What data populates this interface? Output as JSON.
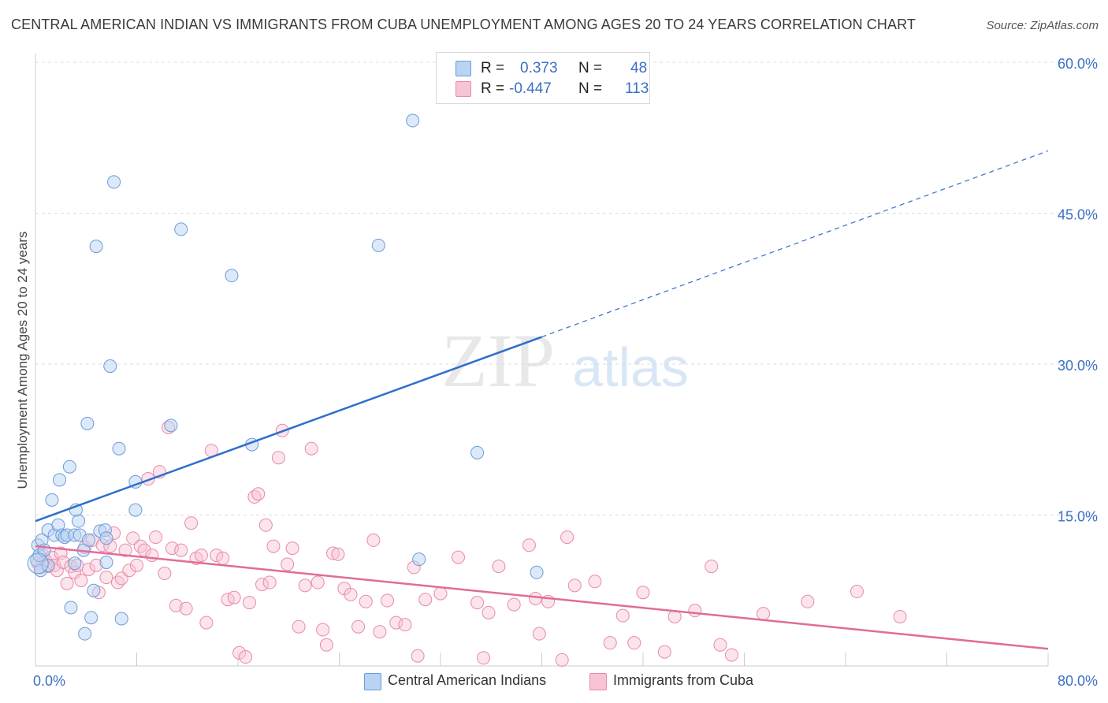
{
  "title": "CENTRAL AMERICAN INDIAN VS IMMIGRANTS FROM CUBA UNEMPLOYMENT AMONG AGES 20 TO 24 YEARS CORRELATION CHART",
  "source": "Source: ZipAtlas.com",
  "watermark": {
    "zip": "ZIP",
    "atlas": "atlas"
  },
  "legend_stats": [
    {
      "r_label": "R =",
      "r_value": "0.373",
      "n_label": "N =",
      "n_value": "48"
    },
    {
      "r_label": "R =",
      "r_value": "-0.447",
      "n_label": "N =",
      "n_value": "113"
    }
  ],
  "colors": {
    "blue_fill": "#b9d3f3",
    "blue_stroke": "#6c9bd8",
    "blue_line": "#2e6fcc",
    "pink_fill": "#f7c3d5",
    "pink_stroke": "#e88aaa",
    "pink_line": "#e06c9a",
    "axis_text": "#3a6fc4",
    "grid": "#dddddd"
  },
  "chart_data": {
    "type": "scatter",
    "title": "CENTRAL AMERICAN INDIAN VS IMMIGRANTS FROM CUBA UNEMPLOYMENT AMONG AGES 20 TO 24 YEARS CORRELATION CHART",
    "xlabel": "",
    "ylabel": "Unemployment Among Ages 20 to 24 years",
    "xlim": [
      0,
      80
    ],
    "ylim": [
      0,
      60
    ],
    "x_tick_labels": [
      "0.0%",
      "80.0%"
    ],
    "y_tick_labels": [
      "15.0%",
      "30.0%",
      "45.0%",
      "60.0%"
    ],
    "y_ticks": [
      15,
      30,
      45,
      60
    ],
    "grid": true,
    "legend_position": "bottom",
    "series": [
      {
        "name": "Central American Indians",
        "color": "#6c9bd8",
        "trend": {
          "x": [
            0,
            40,
            80
          ],
          "y": [
            14.4,
            32.7,
            51.2
          ],
          "solid_until": 40
        },
        "points": [
          [
            0.1,
            10.5
          ],
          [
            0.2,
            12.0
          ],
          [
            0.3,
            11.0
          ],
          [
            0.4,
            9.5
          ],
          [
            0.5,
            12.5
          ],
          [
            0.7,
            11.5
          ],
          [
            1.0,
            13.5
          ],
          [
            1.0,
            10.0
          ],
          [
            1.3,
            16.5
          ],
          [
            1.5,
            13.0
          ],
          [
            1.8,
            14.0
          ],
          [
            1.9,
            18.5
          ],
          [
            2.1,
            13.0
          ],
          [
            2.3,
            12.8
          ],
          [
            2.5,
            13.0
          ],
          [
            2.7,
            19.8
          ],
          [
            2.8,
            5.8
          ],
          [
            3.1,
            10.2
          ],
          [
            3.1,
            13.0
          ],
          [
            3.2,
            15.5
          ],
          [
            3.4,
            14.4
          ],
          [
            3.5,
            13.0
          ],
          [
            3.8,
            11.5
          ],
          [
            3.9,
            3.2
          ],
          [
            4.1,
            24.1
          ],
          [
            4.2,
            12.5
          ],
          [
            4.4,
            4.8
          ],
          [
            4.6,
            7.5
          ],
          [
            4.8,
            41.7
          ],
          [
            5.1,
            13.4
          ],
          [
            5.5,
            13.5
          ],
          [
            5.6,
            12.7
          ],
          [
            5.6,
            10.3
          ],
          [
            5.9,
            29.8
          ],
          [
            6.2,
            48.1
          ],
          [
            6.6,
            21.6
          ],
          [
            6.8,
            4.7
          ],
          [
            7.9,
            18.3
          ],
          [
            7.9,
            15.5
          ],
          [
            10.7,
            23.9
          ],
          [
            11.5,
            43.4
          ],
          [
            15.5,
            38.8
          ],
          [
            17.1,
            22.0
          ],
          [
            27.1,
            41.8
          ],
          [
            29.8,
            54.2
          ],
          [
            30.3,
            10.6
          ],
          [
            34.9,
            21.2
          ],
          [
            39.6,
            9.3
          ]
        ]
      },
      {
        "name": "Immigrants from Cuba",
        "color": "#e88aaa",
        "trend": {
          "x": [
            0,
            80
          ],
          "y": [
            11.9,
            1.7
          ]
        },
        "points": [
          [
            0.2,
            10.2
          ],
          [
            0.4,
            9.8
          ],
          [
            0.6,
            11.0
          ],
          [
            0.8,
            10.5
          ],
          [
            1.0,
            9.9
          ],
          [
            1.3,
            10.8
          ],
          [
            1.5,
            10.0
          ],
          [
            1.7,
            9.5
          ],
          [
            2.0,
            11.2
          ],
          [
            2.2,
            10.3
          ],
          [
            2.5,
            8.2
          ],
          [
            2.8,
            9.9
          ],
          [
            3.1,
            9.3
          ],
          [
            3.3,
            10.0
          ],
          [
            3.6,
            8.5
          ],
          [
            3.9,
            11.8
          ],
          [
            4.2,
            9.6
          ],
          [
            4.5,
            12.5
          ],
          [
            4.8,
            10.0
          ],
          [
            5.0,
            7.3
          ],
          [
            5.3,
            12.0
          ],
          [
            5.6,
            8.8
          ],
          [
            5.9,
            11.9
          ],
          [
            6.2,
            13.2
          ],
          [
            6.5,
            8.3
          ],
          [
            6.8,
            8.7
          ],
          [
            7.1,
            11.5
          ],
          [
            7.4,
            9.5
          ],
          [
            7.7,
            12.7
          ],
          [
            8.0,
            10.0
          ],
          [
            8.3,
            11.9
          ],
          [
            8.6,
            11.5
          ],
          [
            8.9,
            18.6
          ],
          [
            9.2,
            11.0
          ],
          [
            9.5,
            12.8
          ],
          [
            9.8,
            19.3
          ],
          [
            10.2,
            9.2
          ],
          [
            10.5,
            23.7
          ],
          [
            10.8,
            11.7
          ],
          [
            11.1,
            6.0
          ],
          [
            11.5,
            11.5
          ],
          [
            11.9,
            5.7
          ],
          [
            12.3,
            14.2
          ],
          [
            12.7,
            10.7
          ],
          [
            13.1,
            11.0
          ],
          [
            13.5,
            4.3
          ],
          [
            13.9,
            21.4
          ],
          [
            14.3,
            11.0
          ],
          [
            14.8,
            10.7
          ],
          [
            15.2,
            6.6
          ],
          [
            15.7,
            6.8
          ],
          [
            16.1,
            1.3
          ],
          [
            16.6,
            0.9
          ],
          [
            16.9,
            6.3
          ],
          [
            17.3,
            16.8
          ],
          [
            17.6,
            17.1
          ],
          [
            17.9,
            8.1
          ],
          [
            18.2,
            14.0
          ],
          [
            18.5,
            8.3
          ],
          [
            18.8,
            11.9
          ],
          [
            19.2,
            20.7
          ],
          [
            19.5,
            23.4
          ],
          [
            19.9,
            10.1
          ],
          [
            20.3,
            11.7
          ],
          [
            20.8,
            3.9
          ],
          [
            21.3,
            8.0
          ],
          [
            21.8,
            21.6
          ],
          [
            22.3,
            8.3
          ],
          [
            22.7,
            3.6
          ],
          [
            23.0,
            2.1
          ],
          [
            23.5,
            11.2
          ],
          [
            23.9,
            11.1
          ],
          [
            24.4,
            7.7
          ],
          [
            24.9,
            7.1
          ],
          [
            25.5,
            3.9
          ],
          [
            26.1,
            6.4
          ],
          [
            26.7,
            12.5
          ],
          [
            27.2,
            3.4
          ],
          [
            27.8,
            6.5
          ],
          [
            28.5,
            4.3
          ],
          [
            29.2,
            4.1
          ],
          [
            29.9,
            9.8
          ],
          [
            30.2,
            1.0
          ],
          [
            30.8,
            6.6
          ],
          [
            32.0,
            7.2
          ],
          [
            33.4,
            10.8
          ],
          [
            34.9,
            6.3
          ],
          [
            35.4,
            0.8
          ],
          [
            35.8,
            5.3
          ],
          [
            36.6,
            9.9
          ],
          [
            37.8,
            6.1
          ],
          [
            39.0,
            12.0
          ],
          [
            39.5,
            6.7
          ],
          [
            39.8,
            3.2
          ],
          [
            40.5,
            6.4
          ],
          [
            41.6,
            0.6
          ],
          [
            42.0,
            12.8
          ],
          [
            42.6,
            8.0
          ],
          [
            44.2,
            8.4
          ],
          [
            45.4,
            2.3
          ],
          [
            46.4,
            5.0
          ],
          [
            47.3,
            2.3
          ],
          [
            48.0,
            7.3
          ],
          [
            49.7,
            1.4
          ],
          [
            50.5,
            4.9
          ],
          [
            52.1,
            5.5
          ],
          [
            53.4,
            9.9
          ],
          [
            54.1,
            2.1
          ],
          [
            55.0,
            1.1
          ],
          [
            57.5,
            5.2
          ],
          [
            61.0,
            6.4
          ],
          [
            64.9,
            7.4
          ],
          [
            68.3,
            4.9
          ]
        ]
      }
    ]
  },
  "bottom_legend": [
    {
      "label": "Central American Indians"
    },
    {
      "label": "Immigrants from Cuba"
    }
  ]
}
